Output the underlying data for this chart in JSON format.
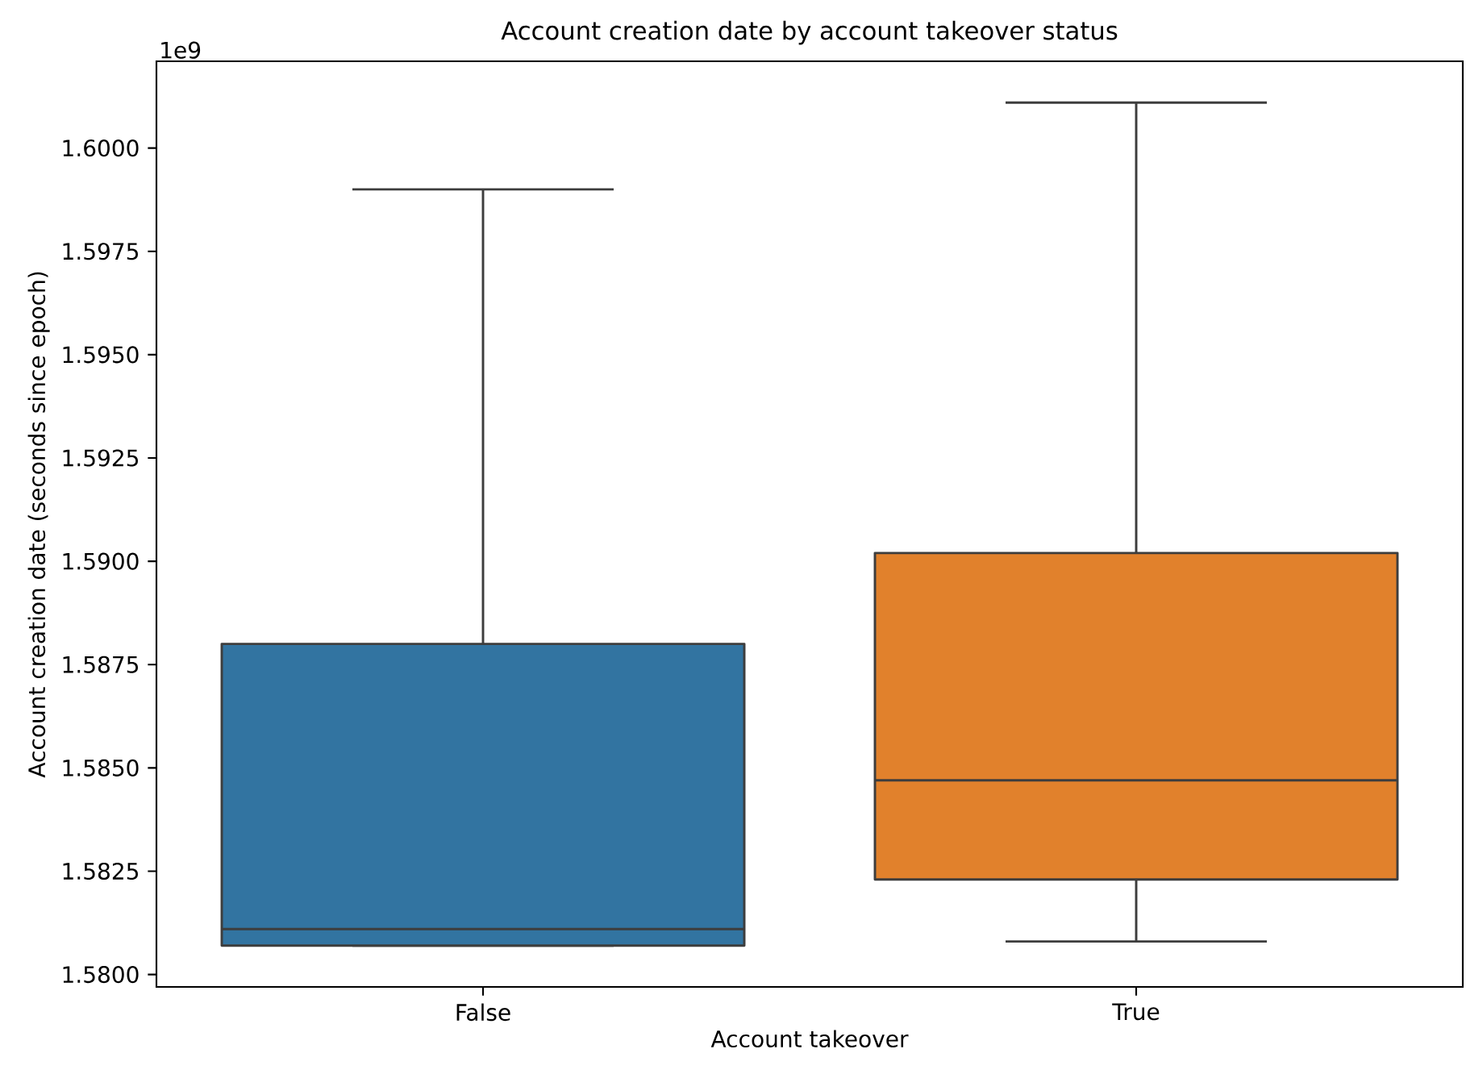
{
  "chart_data": {
    "type": "box",
    "title": "Account creation date by account takeover status",
    "xlabel": "Account takeover",
    "ylabel": "Account creation date (seconds since epoch)",
    "annotations": [
      "1e9"
    ],
    "categories": [
      "False",
      "True"
    ],
    "colors": [
      "#3274a1",
      "#e1812c"
    ],
    "boxes": [
      {
        "low": 1.5807,
        "q1": 1.5807,
        "median": 1.5811,
        "q3": 1.588,
        "high": 1.599
      },
      {
        "low": 1.5808,
        "q1": 1.5823,
        "median": 1.5847,
        "q3": 1.5902,
        "high": 1.6011
      }
    ],
    "ylim": [
      1.5797,
      1.6021
    ],
    "yticks": [
      {
        "value": 1.58,
        "label": "1.5800"
      },
      {
        "value": 1.5825,
        "label": "1.5825"
      },
      {
        "value": 1.585,
        "label": "1.5850"
      },
      {
        "value": 1.5875,
        "label": "1.5875"
      },
      {
        "value": 1.59,
        "label": "1.5900"
      },
      {
        "value": 1.5925,
        "label": "1.5925"
      },
      {
        "value": 1.595,
        "label": "1.5950"
      },
      {
        "value": 1.5975,
        "label": "1.5975"
      },
      {
        "value": 1.6,
        "label": "1.6000"
      }
    ]
  }
}
